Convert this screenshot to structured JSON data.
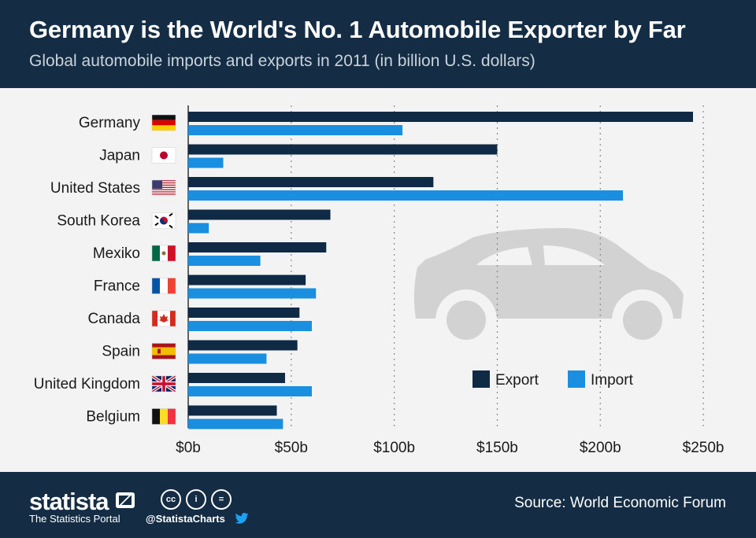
{
  "header": {
    "title": "Germany is the World's No. 1 Automobile Exporter by Far",
    "subtitle": "Global automobile imports and exports in 2011 (in billion U.S. dollars)"
  },
  "colors": {
    "header_bg": "#142c44",
    "export": "#0f2a44",
    "import": "#1a8fe0",
    "background": "#f3f3f3",
    "car": "#d2d2d2"
  },
  "chart_data": {
    "type": "bar",
    "orientation": "horizontal",
    "categories": [
      "Germany",
      "Japan",
      "United States",
      "South Korea",
      "Mexiko",
      "France",
      "Canada",
      "Spain",
      "United Kingdom",
      "Belgium"
    ],
    "series": [
      {
        "name": "Export",
        "values": [
          245,
          150,
          119,
          69,
          67,
          57,
          54,
          53,
          47,
          43
        ]
      },
      {
        "name": "Import",
        "values": [
          104,
          17,
          211,
          10,
          35,
          62,
          60,
          38,
          60,
          46
        ]
      }
    ],
    "x_tick_labels": [
      "$0b",
      "$50b",
      "$100b",
      "$150b",
      "$200b",
      "$250b"
    ],
    "x_ticks": [
      0,
      50,
      100,
      150,
      200,
      250
    ],
    "xlim": [
      0,
      250
    ],
    "grid": "vertical dotted",
    "legend_position": "bottom-right"
  },
  "flags": [
    "germany-flag-icon",
    "japan-flag-icon",
    "usa-flag-icon",
    "south-korea-flag-icon",
    "mexico-flag-icon",
    "france-flag-icon",
    "canada-flag-icon",
    "spain-flag-icon",
    "uk-flag-icon",
    "belgium-flag-icon"
  ],
  "footer": {
    "brand": "statista",
    "tagline": "The Statistics Portal",
    "handle": "@StatistaCharts",
    "source": "Source: World Economic Forum",
    "cc_icons": [
      "cc",
      "i",
      "="
    ]
  }
}
